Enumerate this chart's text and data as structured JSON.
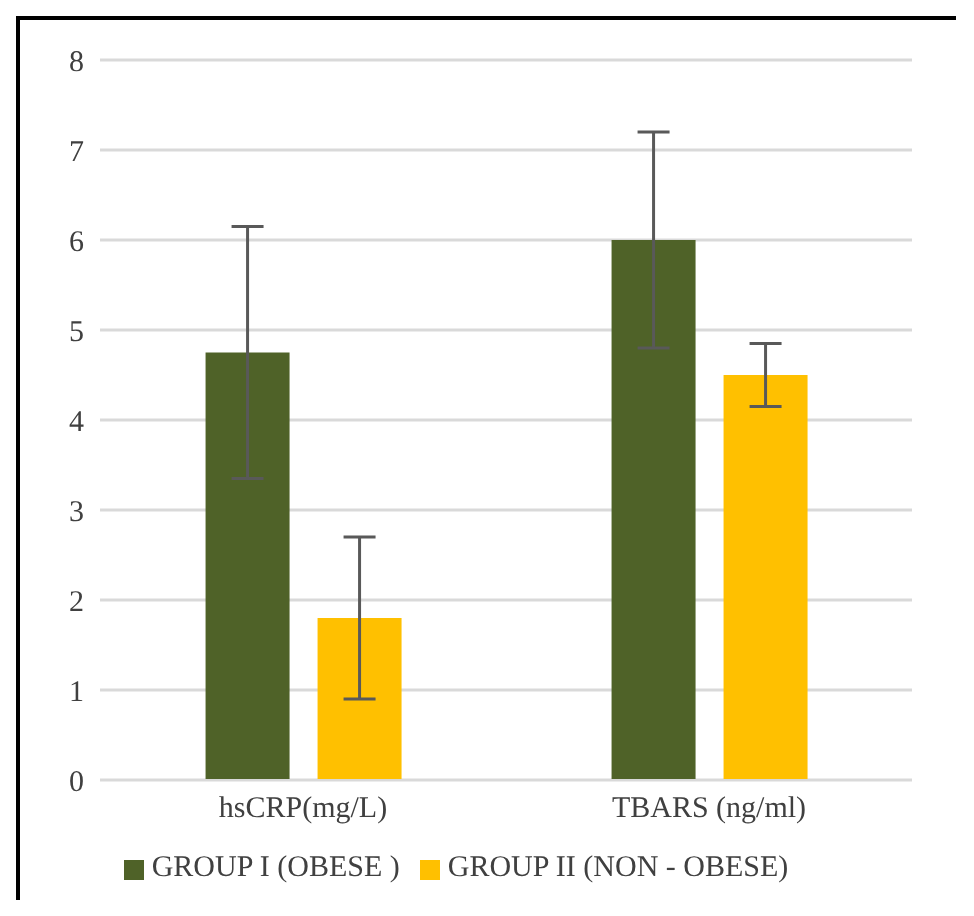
{
  "chart_data": {
    "type": "bar",
    "categories": [
      "hsCRP(mg/L)",
      "TBARS (ng/ml)"
    ],
    "series": [
      {
        "name": "GROUP I (OBESE )",
        "color": "#4f6228",
        "values": [
          4.75,
          6.0
        ],
        "errors": [
          1.4,
          1.2
        ]
      },
      {
        "name": "GROUP II (NON - OBESE)",
        "color": "#ffc000",
        "values": [
          1.8,
          4.5
        ],
        "errors": [
          0.9,
          0.35
        ]
      }
    ],
    "ylim": [
      0,
      8
    ],
    "yticks": [
      0,
      1,
      2,
      3,
      4,
      5,
      6,
      7,
      8
    ],
    "grid": "y",
    "legend": "bottom"
  }
}
